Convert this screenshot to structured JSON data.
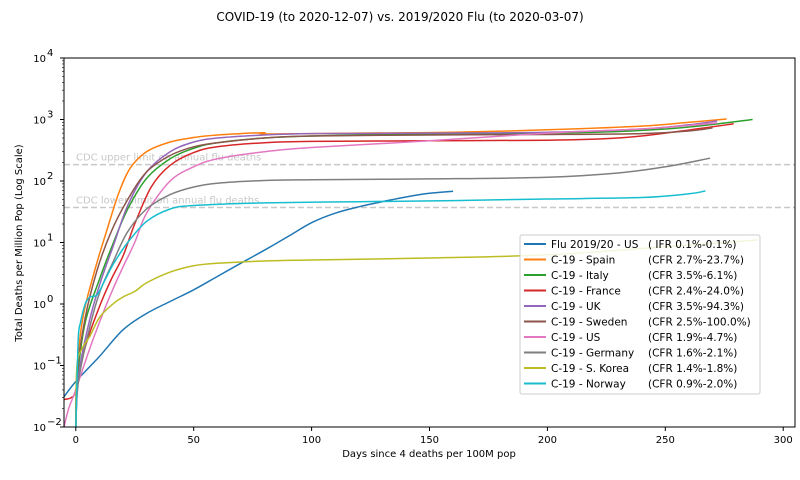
{
  "chart_data": {
    "type": "line",
    "title": "COVID-19 (to 2020-12-07) vs. 2019/2020 Flu (to 2020-03-07)",
    "xlabel": "Days since 4 deaths per 100M pop",
    "ylabel": "Total Deaths per Million Pop (Log Scale)",
    "xlim": [
      -5,
      305
    ],
    "ylim": [
      0.01,
      10000
    ],
    "yscale": "log",
    "x_ticks": [
      0,
      50,
      100,
      150,
      200,
      250,
      300
    ],
    "x_tick_labels": [
      "0",
      "50",
      "100",
      "150",
      "200",
      "250",
      "300"
    ],
    "y_ticks": [
      0.01,
      0.1,
      1,
      10,
      100,
      1000,
      10000
    ],
    "y_tick_labels": [
      {
        "base": "10",
        "exp": "−2"
      },
      {
        "base": "10",
        "exp": "−1"
      },
      {
        "base": "10",
        "exp": "0"
      },
      {
        "base": "10",
        "exp": "1"
      },
      {
        "base": "10",
        "exp": "2"
      },
      {
        "base": "10",
        "exp": "3"
      },
      {
        "base": "10",
        "exp": "4"
      }
    ],
    "grid": false,
    "legend_position": "lower-right",
    "reference_lines": [
      {
        "label": "CDC upper limit on annual flu deaths",
        "y": 185,
        "color": "#c8c8c8"
      },
      {
        "label": "CDC lower limit on annual flu deaths",
        "y": 37,
        "color": "#c8c8c8"
      }
    ],
    "series": [
      {
        "name": "Flu 2019/20 - US",
        "note": "( IFR 0.1%-0.1%)",
        "color": "#1f77b4",
        "points": [
          [
            -5,
            0.031
          ],
          [
            0,
            0.055
          ],
          [
            10,
            0.14
          ],
          [
            20,
            0.38
          ],
          [
            30,
            0.7
          ],
          [
            40,
            1.1
          ],
          [
            50,
            1.7
          ],
          [
            60,
            2.8
          ],
          [
            70,
            4.6
          ],
          [
            80,
            7.5
          ],
          [
            90,
            12.5
          ],
          [
            100,
            21
          ],
          [
            110,
            30
          ],
          [
            120,
            38
          ],
          [
            130,
            46
          ],
          [
            140,
            55
          ],
          [
            150,
            63
          ],
          [
            160,
            68
          ]
        ]
      },
      {
        "name": "C-19 - Spain",
        "note": "(CFR 2.7%-23.7%)",
        "color": "#ff7f0e",
        "points": [
          [
            0,
            0.01
          ],
          [
            0.5,
            0.08
          ],
          [
            3,
            0.6
          ],
          [
            8,
            3.5
          ],
          [
            13,
            15
          ],
          [
            18,
            60
          ],
          [
            23,
            160
          ],
          [
            30,
            300
          ],
          [
            40,
            430
          ],
          [
            50,
            510
          ],
          [
            60,
            560
          ],
          [
            70,
            590
          ],
          [
            80,
            610
          ],
          [
            81,
            580
          ],
          [
            120,
            600
          ],
          [
            160,
            620
          ],
          [
            200,
            680
          ],
          [
            240,
            780
          ],
          [
            260,
            900
          ],
          [
            276,
            1020
          ]
        ]
      },
      {
        "name": "C-19 - Italy",
        "note": "(CFR 3.5%-6.1%)",
        "color": "#2ca02c",
        "points": [
          [
            0,
            0.01
          ],
          [
            0.7,
            0.06
          ],
          [
            4,
            0.5
          ],
          [
            10,
            2.5
          ],
          [
            16,
            10
          ],
          [
            22,
            35
          ],
          [
            30,
            110
          ],
          [
            40,
            230
          ],
          [
            50,
            340
          ],
          [
            60,
            420
          ],
          [
            80,
            500
          ],
          [
            100,
            540
          ],
          [
            140,
            580
          ],
          [
            180,
            590
          ],
          [
            220,
            620
          ],
          [
            250,
            700
          ],
          [
            270,
            830
          ],
          [
            287,
            1000
          ]
        ]
      },
      {
        "name": "C-19 - France",
        "note": "(CFR 2.4%-24.0%)",
        "color": "#d62728",
        "points": [
          [
            -5,
            0.028
          ],
          [
            -2,
            0.03
          ],
          [
            0,
            0.04
          ],
          [
            4,
            0.2
          ],
          [
            10,
            0.9
          ],
          [
            15,
            2.5
          ],
          [
            20,
            6
          ],
          [
            25,
            20
          ],
          [
            32,
            80
          ],
          [
            40,
            180
          ],
          [
            50,
            290
          ],
          [
            60,
            360
          ],
          [
            80,
            420
          ],
          [
            100,
            440
          ],
          [
            150,
            450
          ],
          [
            200,
            460
          ],
          [
            230,
            500
          ],
          [
            250,
            600
          ],
          [
            279,
            850
          ]
        ]
      },
      {
        "name": "C-19 - UK",
        "note": "(CFR 3.5%-94.3%)",
        "color": "#9467bd",
        "points": [
          [
            0,
            0.01
          ],
          [
            1,
            0.06
          ],
          [
            5,
            0.4
          ],
          [
            10,
            2
          ],
          [
            16,
            9
          ],
          [
            22,
            40
          ],
          [
            30,
            140
          ],
          [
            40,
            300
          ],
          [
            50,
            430
          ],
          [
            60,
            500
          ],
          [
            80,
            560
          ],
          [
            100,
            590
          ],
          [
            150,
            600
          ],
          [
            200,
            620
          ],
          [
            240,
            700
          ],
          [
            260,
            820
          ],
          [
            272,
            950
          ]
        ]
      },
      {
        "name": "C-19 - Sweden",
        "note": "(CFR 2.5%-100.0%)",
        "color": "#8c564b",
        "points": [
          [
            0,
            0.01
          ],
          [
            0.5,
            0.07
          ],
          [
            4,
            0.6
          ],
          [
            9,
            3.5
          ],
          [
            15,
            15
          ],
          [
            22,
            50
          ],
          [
            30,
            140
          ],
          [
            40,
            260
          ],
          [
            50,
            360
          ],
          [
            60,
            420
          ],
          [
            80,
            500
          ],
          [
            100,
            540
          ],
          [
            150,
            560
          ],
          [
            200,
            570
          ],
          [
            240,
            590
          ],
          [
            260,
            650
          ],
          [
            270,
            730
          ]
        ]
      },
      {
        "name": "C-19 - US",
        "note": "(CFR 1.9%-4.7%)",
        "color": "#e377c2",
        "points": [
          [
            -5,
            0.01
          ],
          [
            -3,
            0.02
          ],
          [
            0,
            0.04
          ],
          [
            5,
            0.15
          ],
          [
            10,
            0.5
          ],
          [
            15,
            1.5
          ],
          [
            20,
            4
          ],
          [
            25,
            10
          ],
          [
            30,
            30
          ],
          [
            40,
            100
          ],
          [
            50,
            170
          ],
          [
            60,
            230
          ],
          [
            80,
            300
          ],
          [
            100,
            350
          ],
          [
            150,
            450
          ],
          [
            200,
            600
          ],
          [
            240,
            700
          ],
          [
            260,
            800
          ],
          [
            272,
            880
          ]
        ]
      },
      {
        "name": "C-19 - Germany",
        "note": "(CFR 1.6%-2.1%)",
        "color": "#7f7f7f",
        "points": [
          [
            0,
            0.01
          ],
          [
            1,
            0.05
          ],
          [
            5,
            0.3
          ],
          [
            10,
            1.5
          ],
          [
            16,
            5
          ],
          [
            22,
            15
          ],
          [
            30,
            35
          ],
          [
            40,
            60
          ],
          [
            50,
            80
          ],
          [
            60,
            92
          ],
          [
            80,
            102
          ],
          [
            100,
            105
          ],
          [
            150,
            108
          ],
          [
            200,
            115
          ],
          [
            230,
            135
          ],
          [
            250,
            170
          ],
          [
            269,
            235
          ]
        ]
      },
      {
        "name": "C-19 - S. Korea",
        "note": "(CFR 1.4%-1.8%)",
        "color": "#bcbd22",
        "points": [
          [
            0,
            0.01
          ],
          [
            0.5,
            0.1
          ],
          [
            3,
            0.2
          ],
          [
            6,
            0.3
          ],
          [
            10,
            0.6
          ],
          [
            15,
            0.95
          ],
          [
            20,
            1.3
          ],
          [
            25,
            1.6
          ],
          [
            30,
            2.2
          ],
          [
            40,
            3.3
          ],
          [
            50,
            4.2
          ],
          [
            60,
            4.6
          ],
          [
            80,
            5
          ],
          [
            100,
            5.2
          ],
          [
            150,
            5.6
          ],
          [
            200,
            6.3
          ],
          [
            250,
            8.5
          ],
          [
            289,
            11
          ]
        ]
      },
      {
        "name": "C-19 - Norway",
        "note": "(CFR 0.9%-2.0%)",
        "color": "#17becf",
        "points": [
          [
            0,
            0.01
          ],
          [
            1,
            0.25
          ],
          [
            2,
            0.5
          ],
          [
            4,
            1
          ],
          [
            6,
            1.3
          ],
          [
            9,
            1.4
          ],
          [
            12,
            2.3
          ],
          [
            16,
            4.5
          ],
          [
            22,
            10
          ],
          [
            30,
            22
          ],
          [
            40,
            35
          ],
          [
            50,
            40
          ],
          [
            80,
            44
          ],
          [
            120,
            46
          ],
          [
            160,
            48
          ],
          [
            200,
            51
          ],
          [
            240,
            54
          ],
          [
            260,
            62
          ],
          [
            267,
            69
          ]
        ]
      }
    ]
  }
}
